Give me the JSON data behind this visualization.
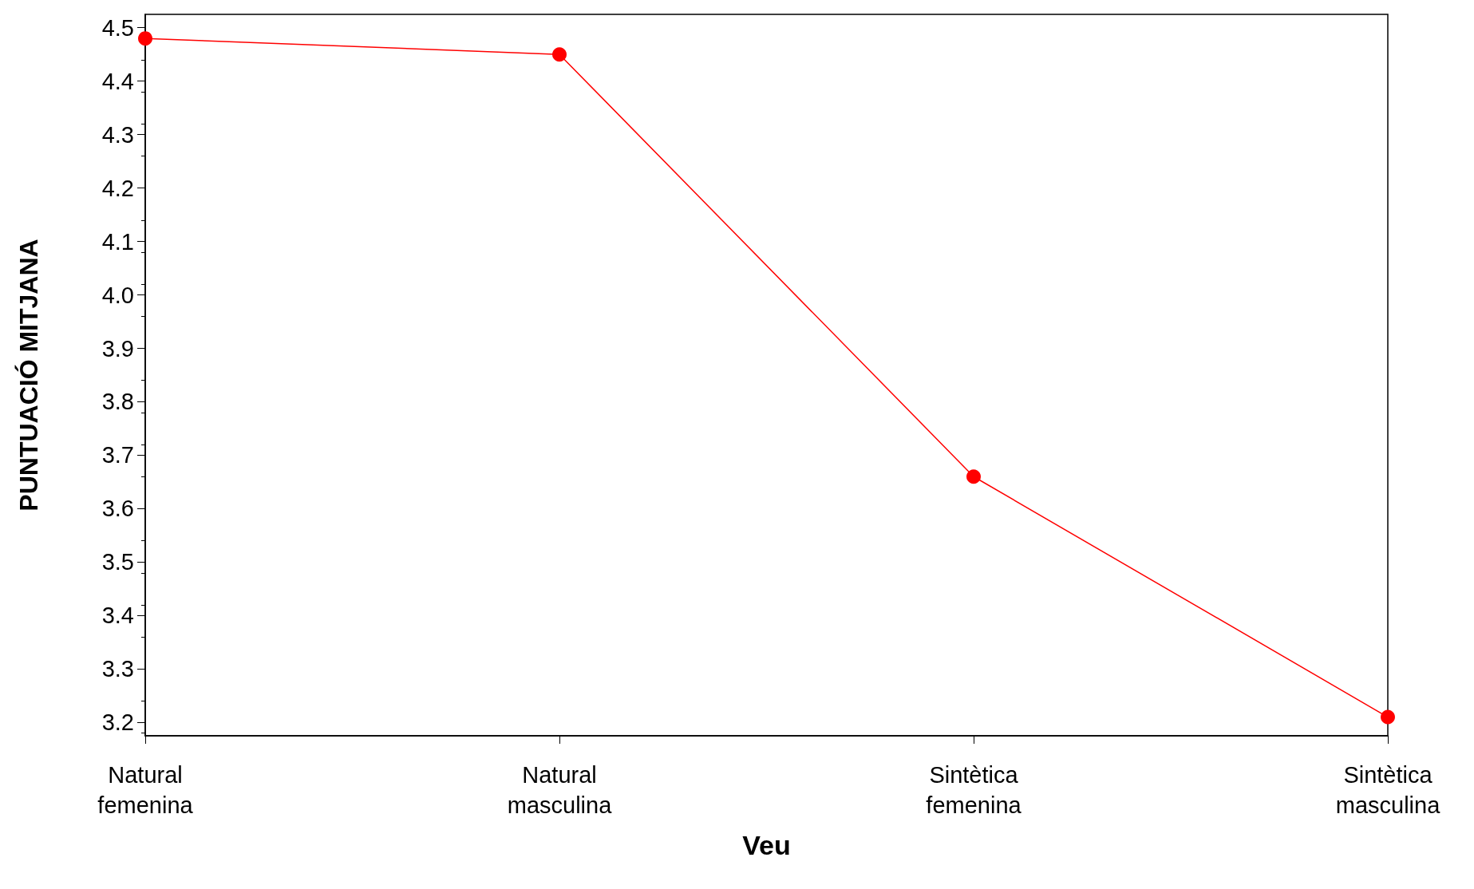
{
  "chart_data": {
    "type": "line",
    "xlabel": "Veu",
    "ylabel": "PUNTUACIÓ MITJANA",
    "categories": [
      "Natural\nfemenina",
      "Natural\nmasculina",
      "Sintètica\nfemenina",
      "Sintètica\nmasculina"
    ],
    "series": [
      {
        "color": "#ff0000",
        "values": [
          4.48,
          4.45,
          3.66,
          3.21
        ]
      }
    ],
    "ylim": [
      3.175,
      4.525
    ],
    "yticks": [
      3.2,
      3.3,
      3.4,
      3.5,
      3.6,
      3.7,
      3.8,
      3.9,
      {
        "value": 4,
        "label": "4.0"
      },
      4.1,
      4.2,
      4.3,
      4.4,
      4.5
    ],
    "grid": false,
    "marker": "circle",
    "line_style": "solid"
  }
}
